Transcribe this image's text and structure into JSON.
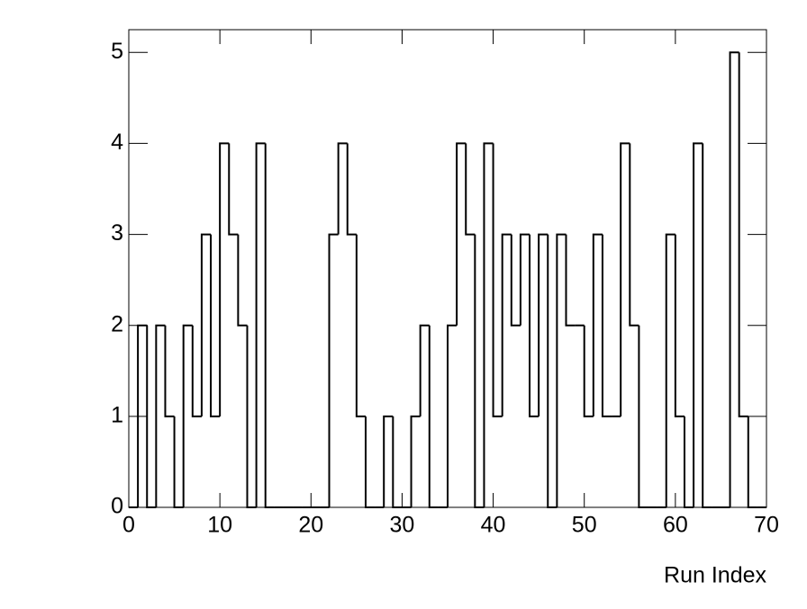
{
  "chart_data": {
    "type": "histogram",
    "x_label": "Run Index",
    "bins": [
      0,
      1,
      2,
      3,
      4,
      5,
      6,
      7,
      8,
      9,
      10,
      11,
      12,
      13,
      14,
      15,
      16,
      17,
      18,
      19,
      20,
      21,
      22,
      23,
      24,
      25,
      26,
      27,
      28,
      29,
      30,
      31,
      32,
      33,
      34,
      35,
      36,
      37,
      38,
      39,
      40,
      41,
      42,
      43,
      44,
      45,
      46,
      47,
      48,
      49,
      50,
      51,
      52,
      53,
      54,
      55,
      56,
      57,
      58,
      59,
      60,
      61,
      62,
      63,
      64,
      65,
      66,
      67,
      68,
      69,
      70
    ],
    "values": [
      0,
      2,
      0,
      2,
      1,
      0,
      2,
      1,
      3,
      1,
      4,
      3,
      2,
      0,
      4,
      0,
      0,
      0,
      0,
      0,
      0,
      0,
      3,
      4,
      3,
      1,
      0,
      0,
      1,
      0,
      0,
      1,
      2,
      0,
      0,
      2,
      4,
      3,
      0,
      4,
      1,
      3,
      2,
      3,
      1,
      3,
      0,
      3,
      2,
      2,
      1,
      3,
      1,
      1,
      4,
      2,
      0,
      0,
      0,
      3,
      1,
      0,
      4,
      0,
      0,
      0,
      5,
      1,
      0,
      0
    ],
    "color": "#000000",
    "xlim": [
      0,
      70
    ],
    "xticks": [
      0,
      10,
      20,
      30,
      40,
      50,
      60,
      70
    ],
    "ylim": [
      0,
      5.25
    ],
    "yticks": [
      0,
      1,
      2,
      3,
      4,
      5
    ]
  }
}
